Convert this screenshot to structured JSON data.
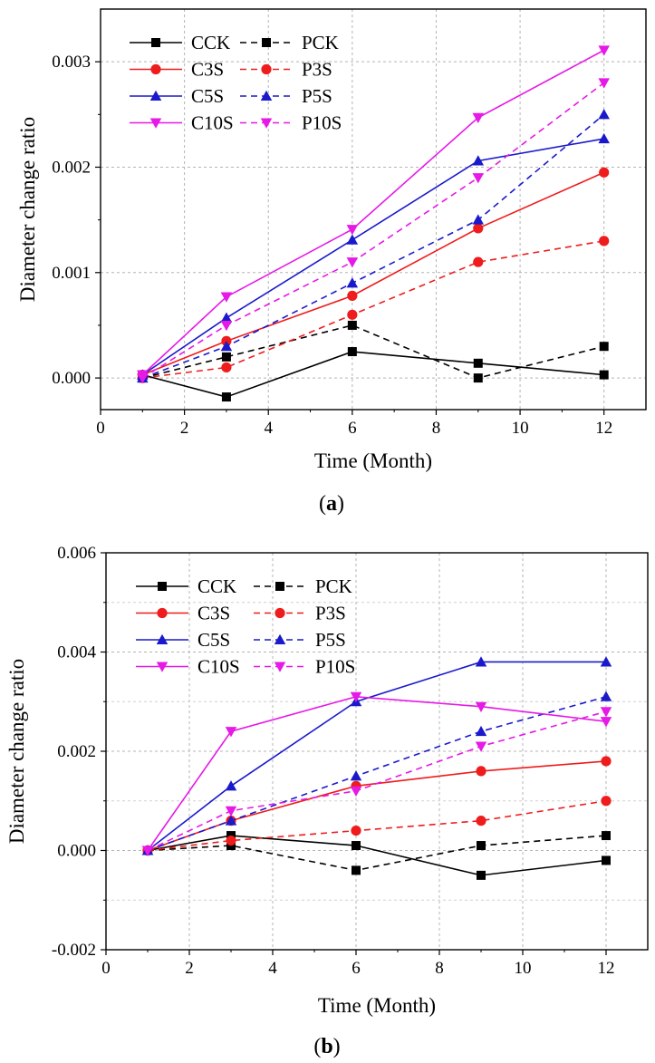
{
  "chart_data": [
    {
      "panel": "a",
      "caption_open": "(",
      "caption_label": "a",
      "caption_close": ")",
      "type": "line",
      "xlabel": "Time (Month)",
      "ylabel": "Diameter change ratio",
      "xlim": [
        0,
        13
      ],
      "ylim": [
        -0.0003,
        0.0035
      ],
      "xticks": [
        0,
        2,
        4,
        6,
        8,
        10,
        12
      ],
      "yticks": [
        0.0,
        0.001,
        0.002,
        0.003
      ],
      "xtick_labels": [
        "0",
        "2",
        "4",
        "6",
        "8",
        "10",
        "12"
      ],
      "ytick_labels": [
        "0.000",
        "0.001",
        "0.002",
        "0.003"
      ],
      "grid": true,
      "legend_position": "top-left",
      "x": [
        1,
        3,
        6,
        9,
        12
      ],
      "series": [
        {
          "name": "CCK",
          "color": "#000000",
          "dash": "solid",
          "marker": "square",
          "values": [
            3e-05,
            -0.00018,
            0.00025,
            0.00014,
            3e-05
          ]
        },
        {
          "name": "PCK",
          "color": "#000000",
          "dash": "dashed",
          "marker": "square",
          "values": [
            0.0,
            0.0002,
            0.0005,
            0.0,
            0.0003
          ]
        },
        {
          "name": "C3S",
          "color": "#ee1c1c",
          "dash": "solid",
          "marker": "circle",
          "values": [
            3e-05,
            0.00035,
            0.00078,
            0.00142,
            0.00195
          ]
        },
        {
          "name": "P3S",
          "color": "#ee1c1c",
          "dash": "dashed",
          "marker": "circle",
          "values": [
            0.0,
            0.0001,
            0.0006,
            0.0011,
            0.0013
          ]
        },
        {
          "name": "C5S",
          "color": "#1a1acc",
          "dash": "solid",
          "marker": "triangle-up",
          "values": [
            3e-05,
            0.00057,
            0.00131,
            0.00206,
            0.00227
          ]
        },
        {
          "name": "P5S",
          "color": "#1a1acc",
          "dash": "dashed",
          "marker": "triangle-up",
          "values": [
            0.0,
            0.0003,
            0.0009,
            0.0015,
            0.0025
          ]
        },
        {
          "name": "C10S",
          "color": "#e619e6",
          "dash": "solid",
          "marker": "triangle-down",
          "values": [
            3e-05,
            0.00077,
            0.00141,
            0.00247,
            0.00311
          ]
        },
        {
          "name": "P10S",
          "color": "#e619e6",
          "dash": "dashed",
          "marker": "triangle-down",
          "values": [
            0.0,
            0.0005,
            0.0011,
            0.0019,
            0.0028
          ]
        }
      ]
    },
    {
      "panel": "b",
      "caption_open": "(",
      "caption_label": "b",
      "caption_close": ")",
      "type": "line",
      "xlabel": "Time (Month)",
      "ylabel": "Diameter change ratio",
      "xlim": [
        0,
        13
      ],
      "ylim": [
        -0.002,
        0.006
      ],
      "xticks": [
        0,
        2,
        4,
        6,
        8,
        10,
        12
      ],
      "yticks": [
        -0.002,
        0.0,
        0.002,
        0.004,
        0.006
      ],
      "xtick_labels": [
        "0",
        "2",
        "4",
        "6",
        "8",
        "10",
        "12"
      ],
      "ytick_labels": [
        "-0.002",
        "0.000",
        "0.002",
        "0.004",
        "0.006"
      ],
      "grid": true,
      "legend_position": "top-left",
      "x": [
        1,
        3,
        6,
        9,
        12
      ],
      "series": [
        {
          "name": "CCK",
          "color": "#000000",
          "dash": "solid",
          "marker": "square",
          "values": [
            0.0,
            0.0003,
            0.0001,
            -0.0005,
            -0.0002
          ]
        },
        {
          "name": "PCK",
          "color": "#000000",
          "dash": "dashed",
          "marker": "square",
          "values": [
            0.0,
            0.0001,
            -0.0004,
            0.0001,
            0.0003
          ]
        },
        {
          "name": "C3S",
          "color": "#ee1c1c",
          "dash": "solid",
          "marker": "circle",
          "values": [
            0.0,
            0.0006,
            0.0013,
            0.0016,
            0.0018
          ]
        },
        {
          "name": "P3S",
          "color": "#ee1c1c",
          "dash": "dashed",
          "marker": "circle",
          "values": [
            0.0,
            0.0002,
            0.0004,
            0.0006,
            0.001
          ]
        },
        {
          "name": "C5S",
          "color": "#1a1acc",
          "dash": "solid",
          "marker": "triangle-up",
          "values": [
            0.0,
            0.0013,
            0.003,
            0.0038,
            0.0038
          ]
        },
        {
          "name": "P5S",
          "color": "#1a1acc",
          "dash": "dashed",
          "marker": "triangle-up",
          "values": [
            0.0,
            0.0006,
            0.0015,
            0.0024,
            0.0031
          ]
        },
        {
          "name": "C10S",
          "color": "#e619e6",
          "dash": "solid",
          "marker": "triangle-down",
          "values": [
            0.0,
            0.0024,
            0.0031,
            0.0029,
            0.0026
          ]
        },
        {
          "name": "P10S",
          "color": "#e619e6",
          "dash": "dashed",
          "marker": "triangle-down",
          "values": [
            0.0,
            0.0008,
            0.0012,
            0.0021,
            0.0028
          ]
        }
      ]
    }
  ]
}
